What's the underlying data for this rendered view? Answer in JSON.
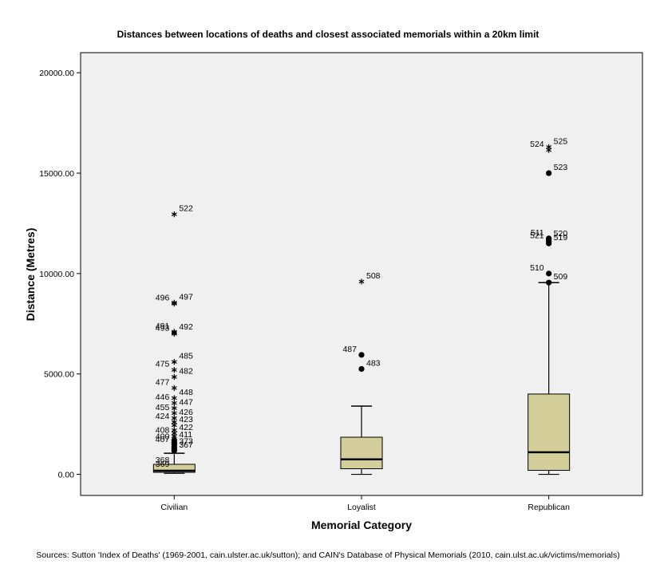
{
  "chart_data": {
    "type": "boxplot",
    "title": "Distances between locations of deaths and closest associated memorials within a 20km limit",
    "xlabel": "Memorial Category",
    "ylabel": "Distance (Metres)",
    "ylim": [
      -1050,
      21000
    ],
    "yticks": [
      0,
      5000,
      10000,
      15000,
      20000
    ],
    "ytick_labels": [
      "0.00",
      "5000.00",
      "10000.00",
      "15000.00",
      "20000.00"
    ],
    "categories": [
      "Civilian",
      "Loyalist",
      "Republican"
    ],
    "grid": false,
    "boxes": [
      {
        "category": "Civilian",
        "min": 50,
        "q1": 100,
        "median": 180,
        "q3": 500,
        "max": 1050,
        "outliers": [
          {
            "y": 1180,
            "label": "367",
            "marker": "circle"
          },
          {
            "y": 1250,
            "label": "",
            "marker": "circle"
          },
          {
            "y": 1350,
            "label": "373",
            "marker": "circle"
          },
          {
            "y": 1450,
            "label": "407",
            "marker": "circle"
          },
          {
            "y": 1520,
            "label": "",
            "marker": "circle"
          },
          {
            "y": 1600,
            "label": "400",
            "marker": "circle"
          },
          {
            "y": 1700,
            "label": "411",
            "marker": "circle"
          },
          {
            "y": 1900,
            "label": "408",
            "marker": "star"
          },
          {
            "y": 2050,
            "label": "422",
            "marker": "star"
          },
          {
            "y": 2200,
            "label": "",
            "marker": "star"
          },
          {
            "y": 2450,
            "label": "423",
            "marker": "star"
          },
          {
            "y": 2600,
            "label": "424",
            "marker": "star"
          },
          {
            "y": 2800,
            "label": "426",
            "marker": "star"
          },
          {
            "y": 3050,
            "label": "455",
            "marker": "star"
          },
          {
            "y": 3300,
            "label": "447",
            "marker": "star"
          },
          {
            "y": 3550,
            "label": "446",
            "marker": "star"
          },
          {
            "y": 3800,
            "label": "448",
            "marker": "star"
          },
          {
            "y": 4300,
            "label": "477",
            "marker": "star"
          },
          {
            "y": 4850,
            "label": "482",
            "marker": "star"
          },
          {
            "y": 5200,
            "label": "475",
            "marker": "star"
          },
          {
            "y": 5600,
            "label": "485",
            "marker": "star"
          },
          {
            "y": 7000,
            "label": "493",
            "marker": "star"
          },
          {
            "y": 7050,
            "label": "492",
            "marker": "star"
          },
          {
            "y": 7100,
            "label": "491",
            "marker": "star"
          },
          {
            "y": 8550,
            "label": "497",
            "marker": "star"
          },
          {
            "y": 8500,
            "label": "496",
            "marker": "star"
          },
          {
            "y": 12950,
            "label": "522",
            "marker": "star"
          }
        ],
        "extra_labels": [
          {
            "text": "368",
            "y": 500
          },
          {
            "text": "369",
            "y": 300
          }
        ]
      },
      {
        "category": "Loyalist",
        "min": 0,
        "q1": 280,
        "median": 750,
        "q3": 1850,
        "max": 3400,
        "outliers": [
          {
            "y": 5250,
            "label": "483",
            "marker": "circle"
          },
          {
            "y": 5950,
            "label": "487",
            "marker": "circle"
          },
          {
            "y": 9600,
            "label": "508",
            "marker": "star"
          }
        ],
        "extra_labels": []
      },
      {
        "category": "Republican",
        "min": 0,
        "q1": 200,
        "median": 1100,
        "q3": 4000,
        "max": 9550,
        "outliers": [
          {
            "y": 9550,
            "label": "509",
            "marker": "circle"
          },
          {
            "y": 10000,
            "label": "510",
            "marker": "circle"
          },
          {
            "y": 11500,
            "label": "519",
            "marker": "circle"
          },
          {
            "y": 11600,
            "label": "521",
            "marker": "circle"
          },
          {
            "y": 11700,
            "label": "520",
            "marker": "circle"
          },
          {
            "y": 11750,
            "label": "511",
            "marker": "circle"
          },
          {
            "y": 15000,
            "label": "523",
            "marker": "circle"
          },
          {
            "y": 16150,
            "label": "524",
            "marker": "star"
          },
          {
            "y": 16300,
            "label": "525",
            "marker": "star"
          }
        ],
        "extra_labels": []
      }
    ],
    "colors": {
      "plot_background": "#f0f0f0",
      "box_fill": "#d4ce9a",
      "line": "#000000"
    }
  },
  "source_text": "Sources:  Sutton 'Index of Deaths' (1969-2001, cain.ulster.ac.uk/sutton); and CAIN's Database of Physical Memorials (2010, cain.ulst.ac.uk/victims/memorials)"
}
